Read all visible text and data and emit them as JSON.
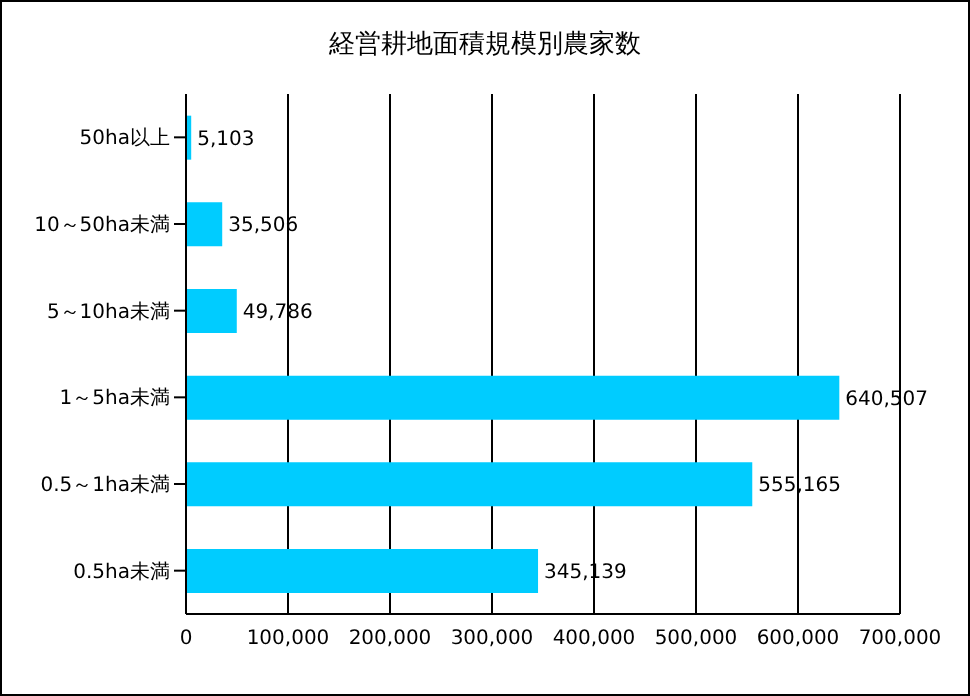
{
  "chart_data": {
    "type": "bar",
    "orientation": "horizontal",
    "title": "経営耕地面積規模別農家数",
    "categories": [
      "50ha以上",
      "10～50ha未満",
      "5～10ha未満",
      "1～5ha未満",
      "0.5～1ha未満",
      "0.5ha未満"
    ],
    "values": [
      5103,
      35506,
      49786,
      640507,
      555165,
      345139
    ],
    "value_labels": [
      "5,103",
      "35,506",
      "49,786",
      "640,507",
      "555,165",
      "345,139"
    ],
    "color": "#00ccff",
    "xlim": [
      0,
      700000
    ],
    "xticks": [
      0,
      {
        "value": 100000,
        "label": "100,000"
      },
      {
        "value": 200000,
        "label": "200,000"
      },
      {
        "value": 300000,
        "label": "300,000"
      },
      {
        "value": 400000,
        "label": "400,000"
      },
      {
        "value": 500000,
        "label": "500,000"
      },
      {
        "value": 600000,
        "label": "600,000"
      },
      {
        "value": 700000,
        "label": "700,000"
      }
    ],
    "grid": "x"
  }
}
